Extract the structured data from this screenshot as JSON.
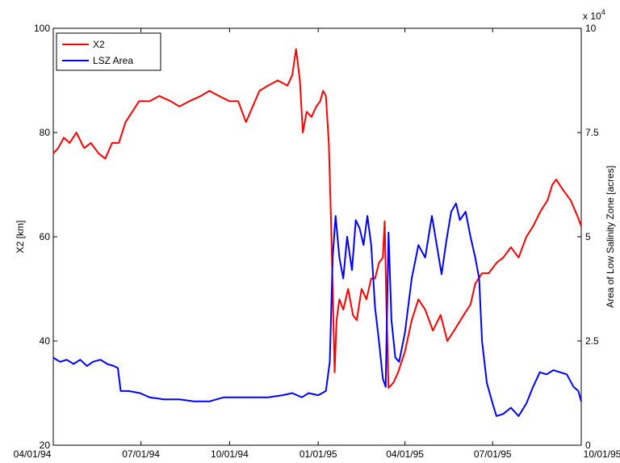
{
  "chart_data": {
    "type": "line",
    "x_tick_labels": [
      "04/01/94",
      "07/01/94",
      "10/01/94",
      "01/01/95",
      "04/01/95",
      "07/01/95",
      "10/01/95"
    ],
    "x_ticks": [
      "1994-04-01",
      "1994-07-01",
      "1994-10-01",
      "1995-01-01",
      "1995-04-01",
      "1995-07-01",
      "1995-10-01"
    ],
    "xlim": [
      "1994-04-01",
      "1995-10-01"
    ],
    "ylabel": "X2 [km]",
    "ylim": [
      20,
      100
    ],
    "y_ticks": [
      20,
      40,
      60,
      80,
      100
    ],
    "y_tick_labels": [
      "20",
      "40",
      "60",
      "80",
      "100"
    ],
    "y2label": "Area of Low Salinity Zone [acres]",
    "y2_exponent_label": "x 10",
    "y2_exponent_power": "4",
    "y2lim": [
      0,
      100000
    ],
    "y2_ticks": [
      0,
      25000,
      50000,
      75000,
      100000
    ],
    "y2_tick_labels": [
      "0",
      "2.5",
      "5",
      "7.5",
      "10"
    ],
    "legend_position": "top-left",
    "grid": false,
    "series": [
      {
        "name": "X2",
        "axis": "left",
        "color": "#ff0000",
        "points": [
          [
            "1994-04-01",
            76
          ],
          [
            "1994-04-06",
            77
          ],
          [
            "1994-04-12",
            79
          ],
          [
            "1994-04-18",
            78
          ],
          [
            "1994-04-25",
            80
          ],
          [
            "1994-05-03",
            77
          ],
          [
            "1994-05-10",
            78
          ],
          [
            "1994-05-18",
            76
          ],
          [
            "1994-05-25",
            75
          ],
          [
            "1994-06-01",
            78
          ],
          [
            "1994-06-08",
            78
          ],
          [
            "1994-06-15",
            82
          ],
          [
            "1994-06-22",
            84
          ],
          [
            "1994-06-29",
            86
          ],
          [
            "1994-07-10",
            86
          ],
          [
            "1994-07-20",
            87
          ],
          [
            "1994-08-01",
            86
          ],
          [
            "1994-08-10",
            85
          ],
          [
            "1994-08-20",
            86
          ],
          [
            "1994-09-01",
            87
          ],
          [
            "1994-09-10",
            88
          ],
          [
            "1994-09-20",
            87
          ],
          [
            "1994-10-01",
            86
          ],
          [
            "1994-10-10",
            86
          ],
          [
            "1994-10-18",
            82
          ],
          [
            "1994-10-25",
            85
          ],
          [
            "1994-11-01",
            88
          ],
          [
            "1994-11-10",
            89
          ],
          [
            "1994-11-20",
            90
          ],
          [
            "1994-11-30",
            89
          ],
          [
            "1994-12-05",
            91
          ],
          [
            "1994-12-09",
            96
          ],
          [
            "1994-12-13",
            90
          ],
          [
            "1994-12-16",
            80
          ],
          [
            "1994-12-20",
            84
          ],
          [
            "1994-12-25",
            83
          ],
          [
            "1994-12-30",
            85
          ],
          [
            "1995-01-03",
            86
          ],
          [
            "1995-01-06",
            88
          ],
          [
            "1995-01-09",
            87
          ],
          [
            "1995-01-12",
            78
          ],
          [
            "1995-01-14",
            65
          ],
          [
            "1995-01-16",
            50
          ],
          [
            "1995-01-18",
            34
          ],
          [
            "1995-01-20",
            44
          ],
          [
            "1995-01-23",
            48
          ],
          [
            "1995-01-27",
            46
          ],
          [
            "1995-02-01",
            50
          ],
          [
            "1995-02-06",
            45
          ],
          [
            "1995-02-10",
            44
          ],
          [
            "1995-02-15",
            50
          ],
          [
            "1995-02-20",
            48
          ],
          [
            "1995-02-25",
            52
          ],
          [
            "1995-03-01",
            52
          ],
          [
            "1995-03-05",
            55
          ],
          [
            "1995-03-09",
            56
          ],
          [
            "1995-03-11",
            63
          ],
          [
            "1995-03-13",
            45
          ],
          [
            "1995-03-15",
            31
          ],
          [
            "1995-03-20",
            32
          ],
          [
            "1995-03-25",
            34
          ],
          [
            "1995-04-01",
            38
          ],
          [
            "1995-04-08",
            44
          ],
          [
            "1995-04-15",
            48
          ],
          [
            "1995-04-22",
            46
          ],
          [
            "1995-04-30",
            42
          ],
          [
            "1995-05-08",
            45
          ],
          [
            "1995-05-15",
            40
          ],
          [
            "1995-05-22",
            42
          ],
          [
            "1995-06-01",
            45
          ],
          [
            "1995-06-08",
            47
          ],
          [
            "1995-06-13",
            51
          ],
          [
            "1995-06-20",
            53
          ],
          [
            "1995-06-27",
            53
          ],
          [
            "1995-07-05",
            55
          ],
          [
            "1995-07-12",
            56
          ],
          [
            "1995-07-20",
            58
          ],
          [
            "1995-07-28",
            56
          ],
          [
            "1995-08-05",
            60
          ],
          [
            "1995-08-12",
            62
          ],
          [
            "1995-08-20",
            65
          ],
          [
            "1995-08-27",
            67
          ],
          [
            "1995-09-01",
            70
          ],
          [
            "1995-09-05",
            71
          ],
          [
            "1995-09-12",
            69
          ],
          [
            "1995-09-20",
            67
          ],
          [
            "1995-09-27",
            64
          ],
          [
            "1995-10-01",
            62
          ]
        ]
      },
      {
        "name": "LSZ Area",
        "axis": "right",
        "color": "#0000ff",
        "points": [
          [
            "1994-04-01",
            21000
          ],
          [
            "1994-04-08",
            20000
          ],
          [
            "1994-04-15",
            20500
          ],
          [
            "1994-04-22",
            19500
          ],
          [
            "1994-04-29",
            20500
          ],
          [
            "1994-05-06",
            19000
          ],
          [
            "1994-05-12",
            20000
          ],
          [
            "1994-05-20",
            20500
          ],
          [
            "1994-05-27",
            19500
          ],
          [
            "1994-06-03",
            19000
          ],
          [
            "1994-06-07",
            18500
          ],
          [
            "1994-06-10",
            13000
          ],
          [
            "1994-06-18",
            13000
          ],
          [
            "1994-06-30",
            12500
          ],
          [
            "1994-07-10",
            11500
          ],
          [
            "1994-07-25",
            11000
          ],
          [
            "1994-08-10",
            11000
          ],
          [
            "1994-08-25",
            10500
          ],
          [
            "1994-09-10",
            10500
          ],
          [
            "1994-09-25",
            11500
          ],
          [
            "1994-10-10",
            11500
          ],
          [
            "1994-10-25",
            11500
          ],
          [
            "1994-11-10",
            11500
          ],
          [
            "1994-11-25",
            12000
          ],
          [
            "1994-12-05",
            12500
          ],
          [
            "1994-12-15",
            11500
          ],
          [
            "1994-12-22",
            12500
          ],
          [
            "1995-01-01",
            12000
          ],
          [
            "1995-01-09",
            13000
          ],
          [
            "1995-01-13",
            20000
          ],
          [
            "1995-01-16",
            45000
          ],
          [
            "1995-01-19",
            55000
          ],
          [
            "1995-01-23",
            45000
          ],
          [
            "1995-01-27",
            40000
          ],
          [
            "1995-01-31",
            50000
          ],
          [
            "1995-02-05",
            42000
          ],
          [
            "1995-02-09",
            54000
          ],
          [
            "1995-02-13",
            52000
          ],
          [
            "1995-02-17",
            48000
          ],
          [
            "1995-02-21",
            55000
          ],
          [
            "1995-02-25",
            48000
          ],
          [
            "1995-03-01",
            33000
          ],
          [
            "1995-03-05",
            25000
          ],
          [
            "1995-03-09",
            16000
          ],
          [
            "1995-03-12",
            14000
          ],
          [
            "1995-03-15",
            51000
          ],
          [
            "1995-03-18",
            30000
          ],
          [
            "1995-03-22",
            21000
          ],
          [
            "1995-03-26",
            20000
          ],
          [
            "1995-04-01",
            27000
          ],
          [
            "1995-04-08",
            40000
          ],
          [
            "1995-04-15",
            48000
          ],
          [
            "1995-04-22",
            45000
          ],
          [
            "1995-04-29",
            55000
          ],
          [
            "1995-05-04",
            48000
          ],
          [
            "1995-05-09",
            41000
          ],
          [
            "1995-05-14",
            49000
          ],
          [
            "1995-05-19",
            56000
          ],
          [
            "1995-05-24",
            58000
          ],
          [
            "1995-05-28",
            54000
          ],
          [
            "1995-06-03",
            56000
          ],
          [
            "1995-06-08",
            50000
          ],
          [
            "1995-06-13",
            45000
          ],
          [
            "1995-06-17",
            40000
          ],
          [
            "1995-06-20",
            25000
          ],
          [
            "1995-06-25",
            15000
          ],
          [
            "1995-07-01",
            10000
          ],
          [
            "1995-07-05",
            7000
          ],
          [
            "1995-07-12",
            7500
          ],
          [
            "1995-07-20",
            9000
          ],
          [
            "1995-07-28",
            7000
          ],
          [
            "1995-08-05",
            10000
          ],
          [
            "1995-08-12",
            14000
          ],
          [
            "1995-08-19",
            17500
          ],
          [
            "1995-08-26",
            17000
          ],
          [
            "1995-09-02",
            18000
          ],
          [
            "1995-09-09",
            17500
          ],
          [
            "1995-09-16",
            17000
          ],
          [
            "1995-09-23",
            14000
          ],
          [
            "1995-09-28",
            13000
          ],
          [
            "1995-10-01",
            10500
          ]
        ]
      }
    ]
  }
}
